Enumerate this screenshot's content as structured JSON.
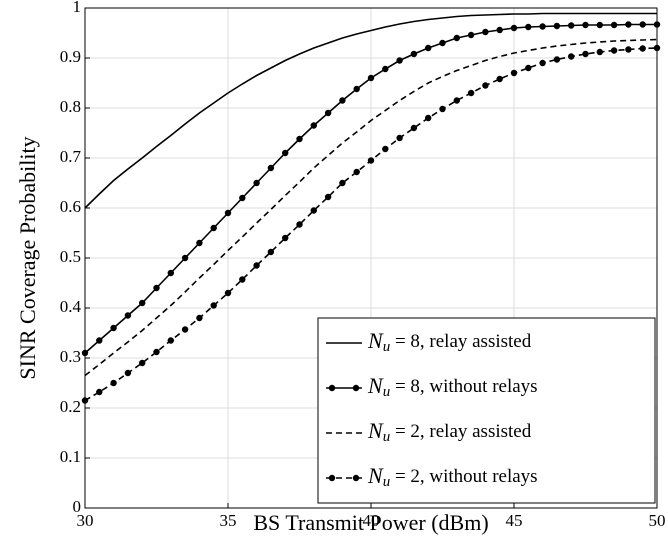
{
  "chart_data": {
    "type": "line",
    "xlabel": "BS Transmit Power (dBm)",
    "ylabel": "SINR Coverage Probability",
    "x": [
      30,
      30.5,
      31,
      31.5,
      32,
      32.5,
      33,
      33.5,
      34,
      34.5,
      35,
      35.5,
      36,
      36.5,
      37,
      37.5,
      38,
      38.5,
      39,
      39.5,
      40,
      40.5,
      41,
      41.5,
      42,
      42.5,
      43,
      43.5,
      44,
      44.5,
      45,
      45.5,
      46,
      46.5,
      47,
      47.5,
      48,
      48.5,
      49,
      49.5,
      50
    ],
    "series": [
      {
        "name": "Nu = 8, relay assisted",
        "color": "#000000",
        "style": "solid",
        "marker": false,
        "values": [
          0.6,
          0.628,
          0.655,
          0.678,
          0.7,
          0.723,
          0.745,
          0.768,
          0.79,
          0.81,
          0.83,
          0.848,
          0.865,
          0.88,
          0.895,
          0.908,
          0.92,
          0.93,
          0.94,
          0.948,
          0.955,
          0.962,
          0.968,
          0.973,
          0.977,
          0.98,
          0.983,
          0.985,
          0.986,
          0.987,
          0.988,
          0.988,
          0.989,
          0.989,
          0.989,
          0.989,
          0.989,
          0.989,
          0.989,
          0.989,
          0.989
        ]
      },
      {
        "name": "Nu = 8, without relays",
        "color": "#000000",
        "style": "solid",
        "marker": true,
        "values": [
          0.31,
          0.335,
          0.36,
          0.385,
          0.41,
          0.44,
          0.47,
          0.5,
          0.53,
          0.56,
          0.59,
          0.62,
          0.65,
          0.68,
          0.71,
          0.738,
          0.765,
          0.79,
          0.815,
          0.838,
          0.86,
          0.878,
          0.895,
          0.908,
          0.92,
          0.93,
          0.94,
          0.946,
          0.952,
          0.956,
          0.96,
          0.962,
          0.963,
          0.964,
          0.965,
          0.966,
          0.966,
          0.966,
          0.967,
          0.967,
          0.967
        ]
      },
      {
        "name": "Nu = 2, relay assisted",
        "color": "#000000",
        "style": "dashed",
        "marker": false,
        "values": [
          0.265,
          0.287,
          0.31,
          0.332,
          0.355,
          0.38,
          0.405,
          0.432,
          0.46,
          0.487,
          0.515,
          0.542,
          0.57,
          0.597,
          0.625,
          0.652,
          0.68,
          0.705,
          0.73,
          0.752,
          0.775,
          0.795,
          0.815,
          0.833,
          0.85,
          0.863,
          0.875,
          0.885,
          0.895,
          0.903,
          0.91,
          0.915,
          0.92,
          0.924,
          0.927,
          0.93,
          0.932,
          0.934,
          0.935,
          0.936,
          0.937
        ]
      },
      {
        "name": "Nu = 2, without relays",
        "color": "#000000",
        "style": "dashed",
        "marker": true,
        "values": [
          0.215,
          0.232,
          0.25,
          0.27,
          0.29,
          0.312,
          0.335,
          0.357,
          0.38,
          0.405,
          0.43,
          0.457,
          0.485,
          0.512,
          0.54,
          0.567,
          0.595,
          0.622,
          0.65,
          0.672,
          0.695,
          0.718,
          0.74,
          0.76,
          0.78,
          0.798,
          0.815,
          0.83,
          0.845,
          0.858,
          0.87,
          0.88,
          0.89,
          0.897,
          0.903,
          0.908,
          0.912,
          0.915,
          0.917,
          0.919,
          0.92
        ]
      }
    ],
    "xlim": [
      30,
      50
    ],
    "xticks": [
      30,
      35,
      40,
      45,
      50
    ],
    "ylim": [
      0,
      1
    ],
    "yticks": [
      0,
      0.1,
      0.2,
      0.3,
      0.4,
      0.5,
      0.6,
      0.7,
      0.8,
      0.9,
      1
    ],
    "grid": true,
    "legend": "lower right"
  }
}
